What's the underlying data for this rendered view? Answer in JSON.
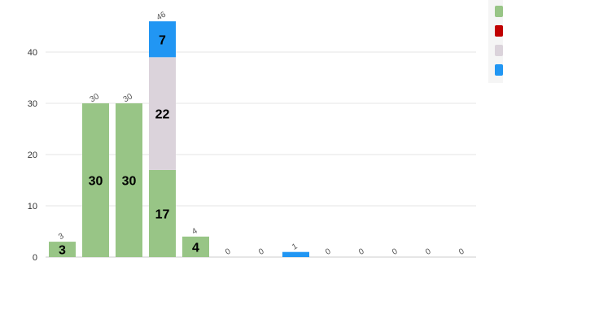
{
  "chart_data": {
    "type": "bar",
    "stacked": true,
    "categories": [
      "",
      "",
      "",
      "",
      "",
      "",
      "",
      "",
      "",
      "",
      "",
      "",
      ""
    ],
    "ylim": [
      0,
      46
    ],
    "yticks": [
      0,
      10,
      20,
      30,
      40
    ],
    "grid": true,
    "legend_position": "top-right",
    "series": [
      {
        "color": "#98c586",
        "values": [
          3,
          30,
          30,
          17,
          4,
          0,
          0,
          0,
          0,
          0,
          0,
          0,
          0
        ]
      },
      {
        "color": "#c00000",
        "values": [
          0,
          0,
          0,
          0,
          0,
          0,
          0,
          0,
          0,
          0,
          0,
          0,
          0
        ]
      },
      {
        "color": "#dbd3db",
        "values": [
          0,
          0,
          0,
          22,
          0,
          0,
          0,
          0,
          0,
          0,
          0,
          0,
          0
        ]
      },
      {
        "color": "#2196f3",
        "values": [
          0,
          0,
          0,
          7,
          0,
          0,
          0,
          1,
          0,
          0,
          0,
          0,
          0
        ]
      }
    ],
    "totals": [
      3,
      30,
      30,
      46,
      4,
      0,
      0,
      1,
      0,
      0,
      0,
      0,
      0
    ]
  }
}
